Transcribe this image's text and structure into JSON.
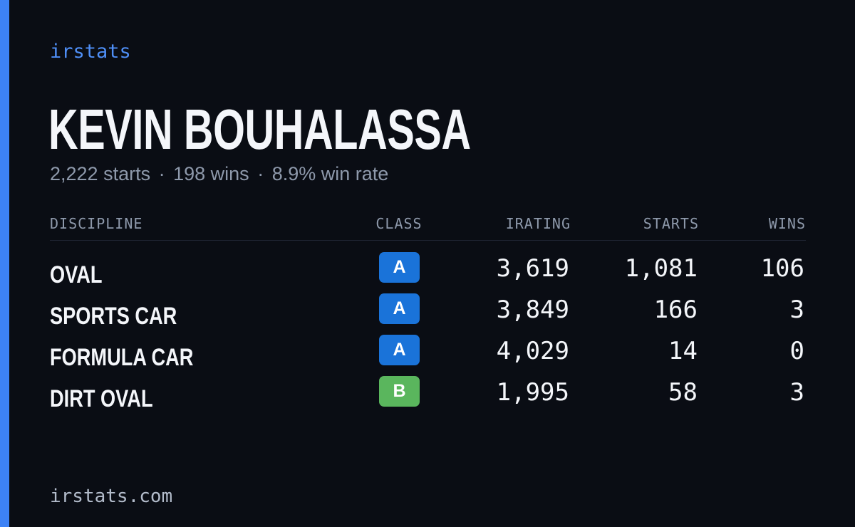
{
  "brand": "irstats",
  "player": {
    "name": "KEVIN BOUHALASSA",
    "starts": "2,222 starts",
    "wins": "198 wins",
    "win_rate": "8.9% win rate",
    "separator": "·"
  },
  "table": {
    "headers": {
      "discipline": "DISCIPLINE",
      "class": "CLASS",
      "irating": "IRATING",
      "starts": "STARTS",
      "wins": "WINS"
    },
    "rows": [
      {
        "discipline": "OVAL",
        "class": "A",
        "class_color": "#1a73d9",
        "irating": "3,619",
        "starts": "1,081",
        "wins": "106"
      },
      {
        "discipline": "SPORTS CAR",
        "class": "A",
        "class_color": "#1a73d9",
        "irating": "3,849",
        "starts": "166",
        "wins": "3"
      },
      {
        "discipline": "FORMULA CAR",
        "class": "A",
        "class_color": "#1a73d9",
        "irating": "4,029",
        "starts": "14",
        "wins": "0"
      },
      {
        "discipline": "DIRT OVAL",
        "class": "B",
        "class_color": "#5ab65d",
        "irating": "1,995",
        "starts": "58",
        "wins": "3"
      }
    ]
  },
  "footer": {
    "url": "irstats.com"
  },
  "colors": {
    "background": "#0a0d14",
    "accent": "#3d82f6",
    "class_a": "#1a73d9",
    "class_b": "#5ab65d"
  }
}
